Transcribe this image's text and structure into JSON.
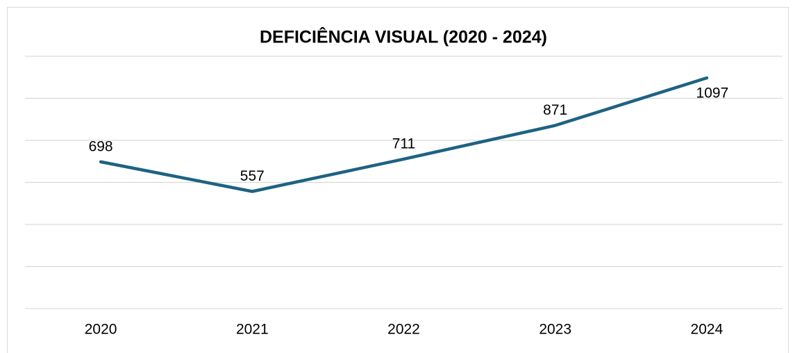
{
  "chart_data": {
    "type": "line",
    "title": "DEFICIÊNCIA VISUAL (2020 - 2024)",
    "categories": [
      "2020",
      "2021",
      "2022",
      "2023",
      "2024"
    ],
    "values": [
      698,
      557,
      711,
      871,
      1097
    ],
    "color": "#1e6283",
    "ylim": [
      0,
      1200
    ],
    "yticks": [
      0,
      200,
      400,
      600,
      800,
      1000,
      1200
    ],
    "grid": true
  }
}
